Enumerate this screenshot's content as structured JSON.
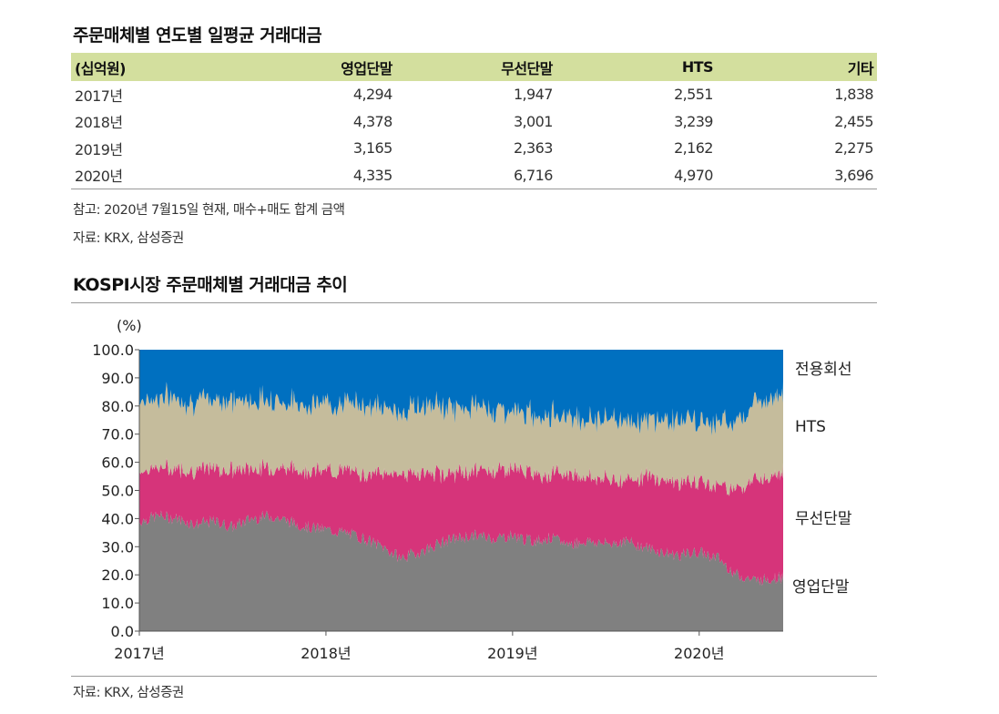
{
  "table_title": "주문매체별 연도별 일평균 거래대금",
  "table": {
    "headers": [
      "(십억원)",
      "영업단말",
      "무선단말",
      "HTS",
      "기타"
    ],
    "rows": [
      [
        "2017년",
        "4,294",
        "1,947",
        "2,551",
        "1,838"
      ],
      [
        "2018년",
        "4,378",
        "3,001",
        "3,239",
        "2,455"
      ],
      [
        "2019년",
        "3,165",
        "2,363",
        "2,162",
        "2,275"
      ],
      [
        "2020년",
        "4,335",
        "6,716",
        "4,970",
        "3,696"
      ]
    ]
  },
  "table_note": "참고: 2020년 7월15일 현재, 매수+매도 합계 금액",
  "table_source": "자료: KRX, 삼성증권",
  "chart_title": "KOSPI시장 주문매체별 거래대금 추이",
  "chart_source": "자료: KRX, 삼성증권",
  "colors": {
    "table_header": "#d3df9e",
    "영업단말": "#808080",
    "무선단말": "#d6347a",
    "HTS": "#c5bc9c",
    "전용회선": "#0070c0"
  },
  "chart_data": {
    "type": "area",
    "stacked": true,
    "title": "KOSPI시장 주문매체별 거래대금 추이",
    "ylabel": "(%)",
    "ylim": [
      0,
      100
    ],
    "yticks": [
      "100.0",
      "90.0",
      "80.0",
      "70.0",
      "60.0",
      "50.0",
      "40.0",
      "30.0",
      "20.0",
      "10.0",
      "0.0"
    ],
    "xticks": [
      "2017년",
      "2018년",
      "2019년",
      "2020년"
    ],
    "x_domain": [
      2017.0,
      2020.45
    ],
    "x": [
      2017.0,
      2017.1,
      2017.2,
      2017.3,
      2017.4,
      2017.5,
      2017.6,
      2017.7,
      2017.8,
      2017.9,
      2018.0,
      2018.1,
      2018.2,
      2018.3,
      2018.4,
      2018.5,
      2018.6,
      2018.7,
      2018.8,
      2018.9,
      2019.0,
      2019.1,
      2019.2,
      2019.3,
      2019.4,
      2019.5,
      2019.6,
      2019.7,
      2019.8,
      2019.9,
      2020.0,
      2020.1,
      2020.2,
      2020.3,
      2020.4,
      2020.45
    ],
    "series": [
      {
        "name": "영업단말",
        "values": [
          39,
          41,
          40,
          38,
          39,
          37,
          40,
          41,
          39,
          37,
          36,
          35,
          33,
          30,
          26,
          28,
          31,
          33,
          34,
          33,
          34,
          32,
          33,
          31,
          32,
          31,
          32,
          30,
          28,
          27,
          28,
          26,
          20,
          18,
          19,
          19
        ]
      },
      {
        "name": "무선단말",
        "values": [
          18,
          17,
          18,
          19,
          19,
          20,
          18,
          17,
          19,
          20,
          21,
          22,
          23,
          26,
          30,
          28,
          25,
          23,
          23,
          24,
          24,
          24,
          23,
          25,
          23,
          23,
          22,
          25,
          26,
          26,
          25,
          26,
          31,
          36,
          37,
          38
        ]
      },
      {
        "name": "HTS",
        "values": [
          25,
          25,
          25,
          24,
          25,
          25,
          24,
          25,
          23,
          24,
          24,
          24,
          25,
          23,
          22,
          24,
          24,
          23,
          23,
          22,
          20,
          21,
          21,
          21,
          20,
          22,
          21,
          20,
          21,
          22,
          21,
          22,
          24,
          27,
          28,
          28
        ]
      },
      {
        "name": "전용회선",
        "values": [
          18,
          17,
          17,
          19,
          17,
          18,
          18,
          17,
          19,
          19,
          19,
          19,
          19,
          21,
          22,
          20,
          20,
          21,
          20,
          21,
          22,
          23,
          23,
          23,
          25,
          24,
          25,
          25,
          25,
          25,
          26,
          26,
          25,
          19,
          16,
          15
        ]
      }
    ],
    "series_labels": [
      "영업단말",
      "무선단말",
      "HTS",
      "전용회선"
    ]
  }
}
